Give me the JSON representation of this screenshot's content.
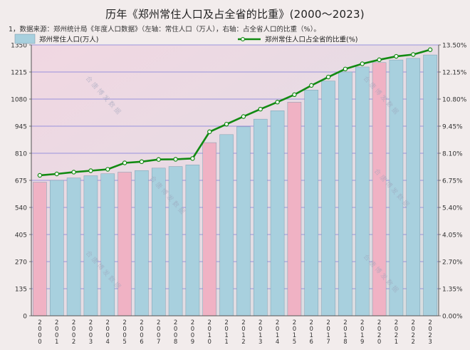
{
  "title": "历年《郑州常住人口及占全省的比重》(2000～2023)",
  "note": "1，数据来源：郑州统计局《年度人口数据》（左轴：常住人口（万人），右轴：占全省人口的比重（%）。",
  "watermark": "合 唐 博 发 数 据",
  "colors": {
    "bar": "#a8d0de",
    "bar_highlight": "#f0b2c4",
    "bar_stroke": "#7f9fb0",
    "line": "#128a12",
    "grid": "#6a6ad8"
  },
  "chart_data": {
    "type": "bar",
    "categories": [
      "2000",
      "2001",
      "2002",
      "2003",
      "2004",
      "2005",
      "2006",
      "2007",
      "2008",
      "2009",
      "2010",
      "2011",
      "2012",
      "2013",
      "2014",
      "2015",
      "2016",
      "2017",
      "2018",
      "2019",
      "2020",
      "2021",
      "2022",
      "2023"
    ],
    "highlighted_categories": [
      "2000",
      "2005",
      "2010",
      "2015",
      "2020"
    ],
    "series": [
      {
        "name": "郑州常住人口(万人)",
        "type": "bar",
        "axis": "left",
        "values": [
          666,
          675,
          687,
          698,
          708,
          716,
          724,
          736,
          744,
          752,
          863,
          903,
          942,
          980,
          1022,
          1065,
          1125,
          1170,
          1215,
          1240,
          1262,
          1275,
          1283,
          1300
        ]
      },
      {
        "name": "郑州常住人口占全省的比重(%)",
        "type": "line",
        "axis": "right",
        "values": [
          7.0,
          7.07,
          7.16,
          7.23,
          7.3,
          7.62,
          7.68,
          7.79,
          7.8,
          7.84,
          9.17,
          9.55,
          9.93,
          10.3,
          10.65,
          11.02,
          11.48,
          11.9,
          12.3,
          12.56,
          12.76,
          12.93,
          13.02,
          13.26
        ]
      }
    ],
    "y_left": {
      "min": 0,
      "max": 1350,
      "ticks": [
        "0",
        "135",
        "270",
        "405",
        "540",
        "675",
        "810",
        "945",
        "1080",
        "1215",
        "1350"
      ]
    },
    "y_right": {
      "min": 0,
      "max": 13.5,
      "ticks": [
        "0.00%",
        "1.35%",
        "2.70%",
        "4.05%",
        "5.40%",
        "6.75%",
        "8.10%",
        "9.45%",
        "10.80%",
        "12.15%",
        "13.50%"
      ]
    },
    "grid": true,
    "legend": "top"
  }
}
